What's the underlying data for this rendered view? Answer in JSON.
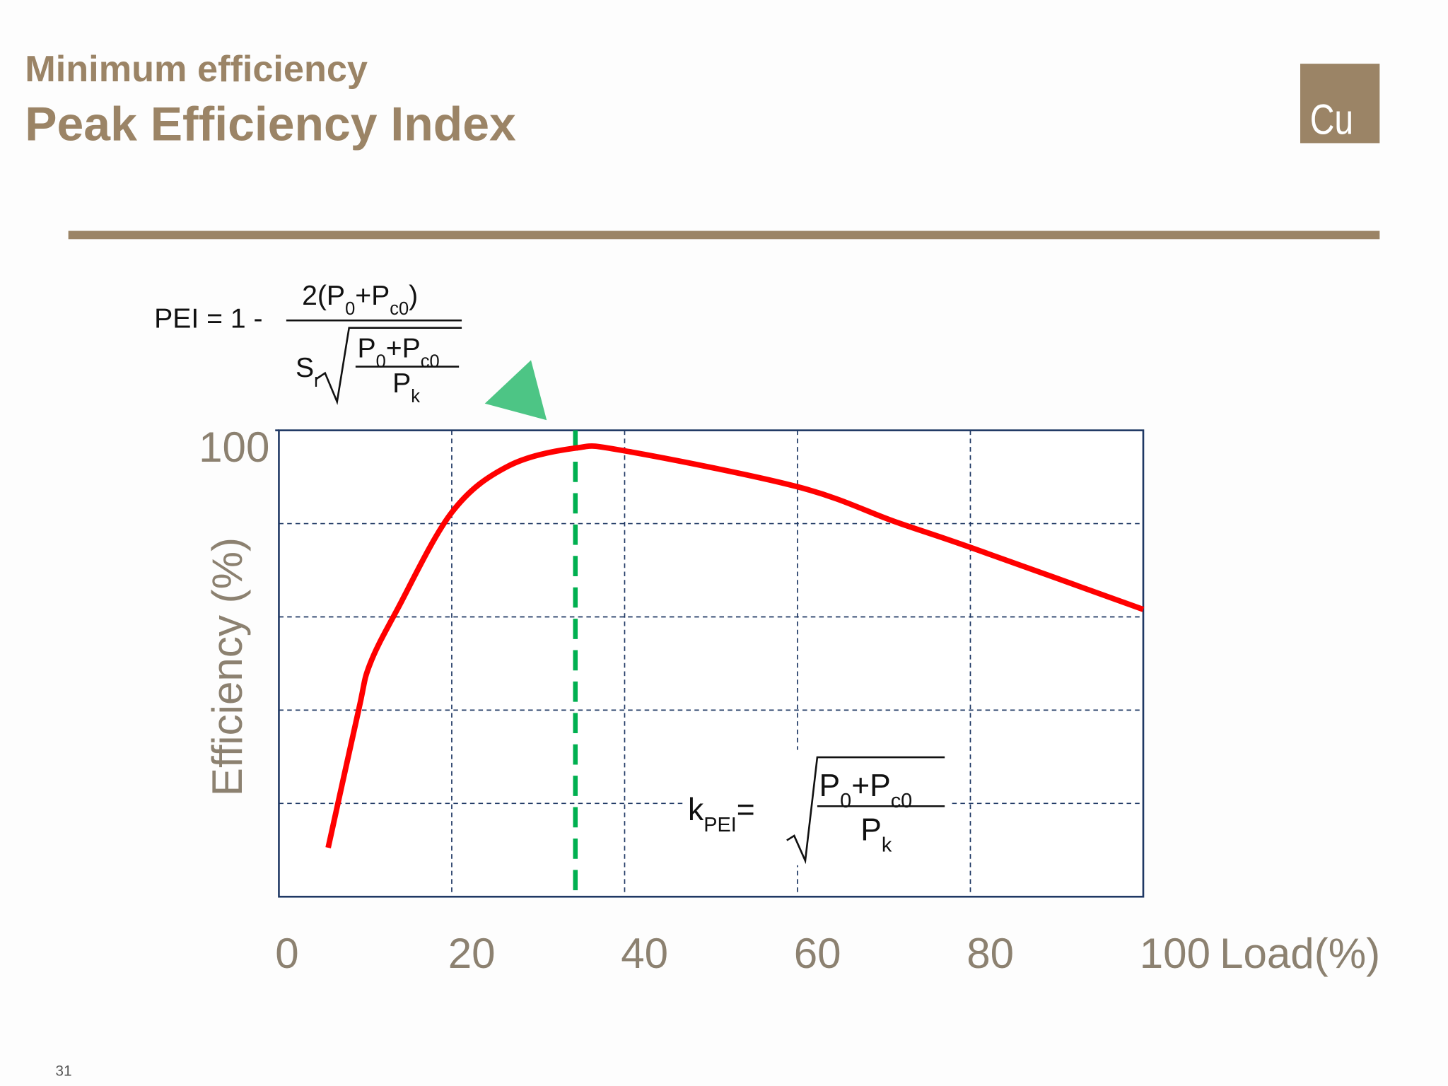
{
  "header": {
    "subtitle": "Minimum efficiency",
    "title": "Peak Efficiency Index",
    "logo": "Cu"
  },
  "chart_data": {
    "type": "line",
    "x": [
      5.7,
      9.2,
      10.5,
      13.7,
      20,
      26.5,
      34.3,
      40,
      60,
      71.3,
      80,
      100
    ],
    "values": [
      10.5,
      39.8,
      49.7,
      61.6,
      82.4,
      92.3,
      96.2,
      95.6,
      87.9,
      80.4,
      74.9,
      61.6
    ],
    "color": "#ff0000",
    "xlim": [
      0,
      100
    ],
    "ylim": [
      0,
      100
    ],
    "xticks": [
      0,
      20,
      40,
      60,
      80,
      100
    ],
    "yticks": [
      100
    ],
    "xgrid": [
      20,
      40,
      60,
      80
    ],
    "ygrid": [
      20,
      40,
      60,
      80
    ],
    "xlabel": "Load(%)",
    "ylabel": "Efficiency (%)",
    "peak_x": 34.3,
    "peak_color": "#00b050",
    "grid_color": "#1f3864"
  },
  "formulas": {
    "pei": {
      "lhs": "PEI = 1 -",
      "numerator": [
        "2(P",
        "0",
        "+P",
        "c0",
        ")"
      ],
      "denominator": [
        "S",
        "r"
      ],
      "root_numerator": [
        "P",
        "0",
        "+P",
        "c0"
      ],
      "root_denominator": [
        "P",
        "k"
      ]
    },
    "kpei": {
      "lhs": [
        "k",
        "PEI",
        "="
      ],
      "root_numerator": [
        "P",
        "0",
        "+P",
        "c0"
      ],
      "root_denominator": [
        "P",
        "k"
      ]
    }
  },
  "page_number": "31"
}
